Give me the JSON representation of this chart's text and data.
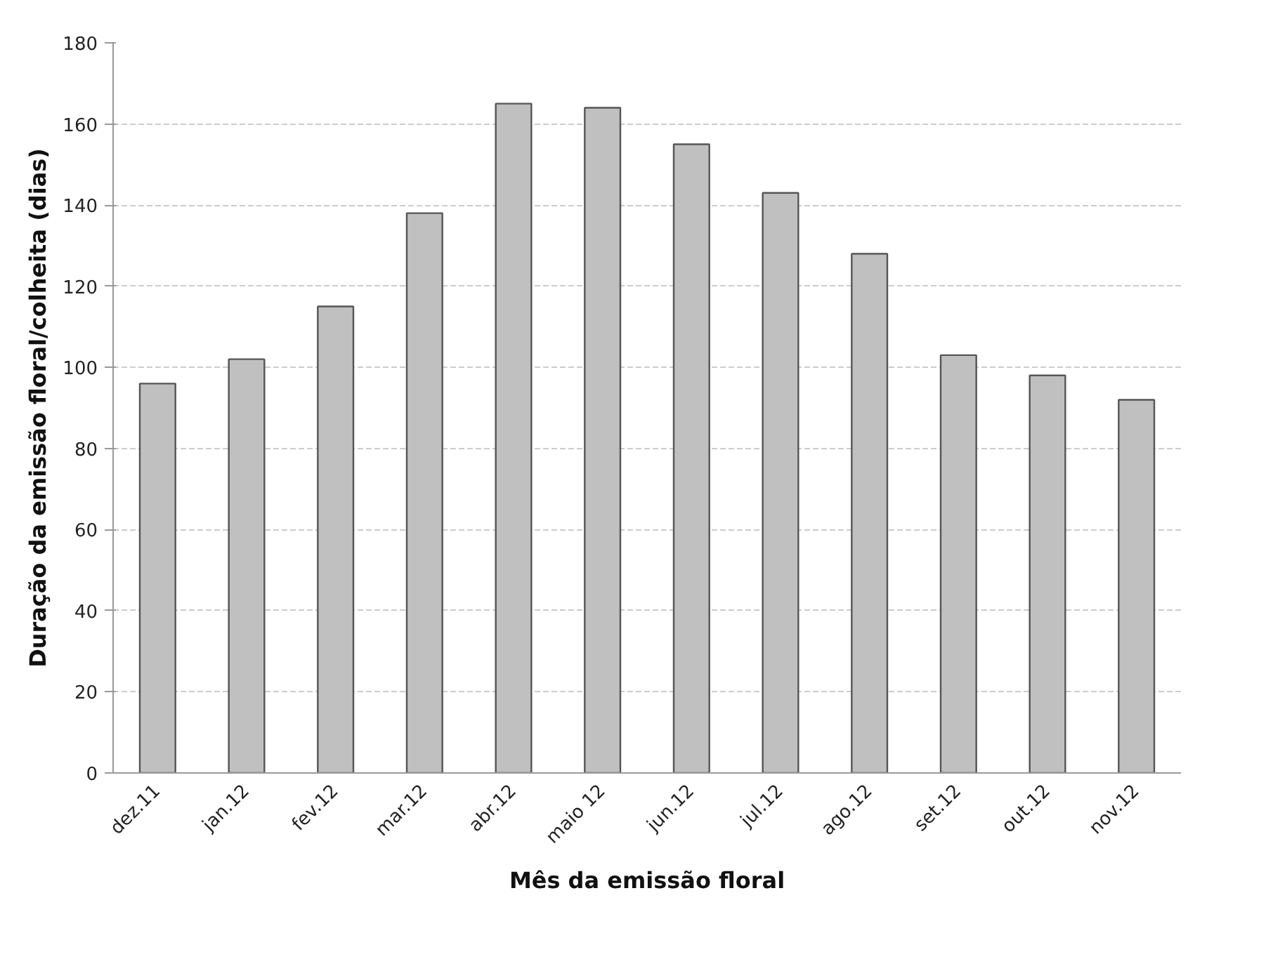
{
  "chart_data": {
    "type": "bar",
    "categories": [
      "dez.11",
      "jan.12",
      "fev.12",
      "mar.12",
      "abr.12",
      "maio 12",
      "jun.12",
      "jul.12",
      "ago.12",
      "set.12",
      "out.12",
      "nov.12"
    ],
    "values": [
      96,
      102,
      115,
      138,
      165,
      164,
      155,
      143,
      128,
      103,
      98,
      92
    ],
    "color": "#c0c0c0",
    "xlabel": "Mês da emissão floral",
    "ylabel": "Duração da emissão floral/colheita (dias)",
    "ylim": [
      0,
      180
    ],
    "yticks": [
      0,
      20,
      40,
      60,
      80,
      100,
      120,
      140,
      160,
      180
    ],
    "grid": "y"
  }
}
